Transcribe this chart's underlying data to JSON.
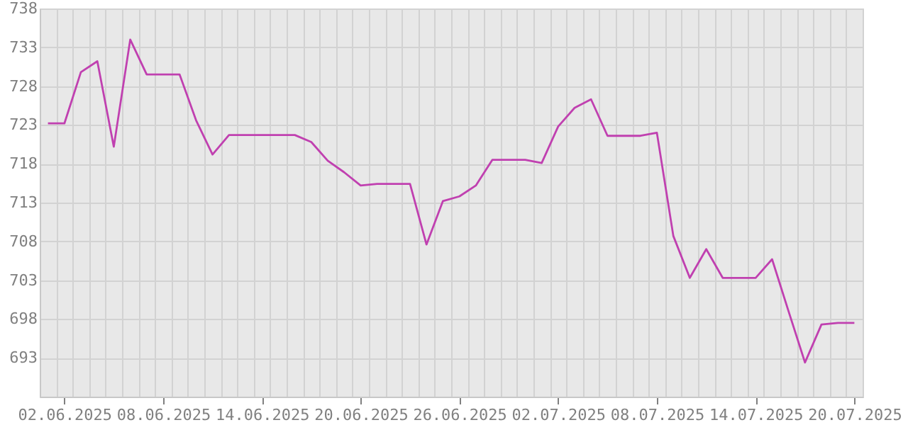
{
  "chart_data": {
    "type": "line",
    "x": [
      "2025-06-01",
      "2025-06-02",
      "2025-06-03",
      "2025-06-04",
      "2025-06-05",
      "2025-06-06",
      "2025-06-07",
      "2025-06-08",
      "2025-06-09",
      "2025-06-10",
      "2025-06-11",
      "2025-06-12",
      "2025-06-13",
      "2025-06-14",
      "2025-06-15",
      "2025-06-16",
      "2025-06-17",
      "2025-06-18",
      "2025-06-19",
      "2025-06-20",
      "2025-06-21",
      "2025-06-22",
      "2025-06-23",
      "2025-06-24",
      "2025-06-25",
      "2025-06-26",
      "2025-06-27",
      "2025-06-28",
      "2025-06-29",
      "2025-06-30",
      "2025-07-01",
      "2025-07-02",
      "2025-07-03",
      "2025-07-04",
      "2025-07-05",
      "2025-07-06",
      "2025-07-07",
      "2025-07-08",
      "2025-07-09",
      "2025-07-10",
      "2025-07-11",
      "2025-07-12",
      "2025-07-13",
      "2025-07-14",
      "2025-07-15",
      "2025-07-16",
      "2025-07-17",
      "2025-07-18",
      "2025-07-19",
      "2025-07-20"
    ],
    "series": [
      {
        "color": "#c040b0",
        "values": [
          723.2,
          723.2,
          729.8,
          731.2,
          720.2,
          734.0,
          729.5,
          729.5,
          729.5,
          723.6,
          719.2,
          721.7,
          721.7,
          721.7,
          721.7,
          721.7,
          720.8,
          718.4,
          716.9,
          715.2,
          715.4,
          715.4,
          715.4,
          707.6,
          713.2,
          713.8,
          715.2,
          718.5,
          718.5,
          718.5,
          718.1,
          722.8,
          725.2,
          726.3,
          721.6,
          721.6,
          721.6,
          722.0,
          708.7,
          703.3,
          707.0,
          703.3,
          703.3,
          703.3,
          705.7,
          699.0,
          692.4,
          697.3,
          697.5,
          697.5
        ]
      }
    ],
    "xlim": [
      "2025-05-31T12:00",
      "2025-07-20T12:00"
    ],
    "xticks": [
      {
        "value": "2025-06-01T12:00",
        "label": null
      },
      {
        "value": "2025-06-02",
        "label": "02.06.2025"
      },
      {
        "value": "2025-06-02T12:00",
        "label": null
      },
      {
        "value": "2025-06-03T12:00",
        "label": null
      },
      {
        "value": "2025-06-04T12:00",
        "label": null
      },
      {
        "value": "2025-06-05T12:00",
        "label": null
      },
      {
        "value": "2025-06-06T12:00",
        "label": null
      },
      {
        "value": "2025-06-07T12:00",
        "label": null
      },
      {
        "value": "2025-06-08",
        "label": "08.06.2025"
      },
      {
        "value": "2025-06-08T12:00",
        "label": null
      },
      {
        "value": "2025-06-09T12:00",
        "label": null
      },
      {
        "value": "2025-06-10T12:00",
        "label": null
      },
      {
        "value": "2025-06-11T12:00",
        "label": null
      },
      {
        "value": "2025-06-12T12:00",
        "label": null
      },
      {
        "value": "2025-06-13T12:00",
        "label": null
      },
      {
        "value": "2025-06-14",
        "label": "14.06.2025"
      },
      {
        "value": "2025-06-14T12:00",
        "label": null
      },
      {
        "value": "2025-06-15T12:00",
        "label": null
      },
      {
        "value": "2025-06-16T12:00",
        "label": null
      },
      {
        "value": "2025-06-17T12:00",
        "label": null
      },
      {
        "value": "2025-06-18T12:00",
        "label": null
      },
      {
        "value": "2025-06-19T12:00",
        "label": null
      },
      {
        "value": "2025-06-20",
        "label": "20.06.2025"
      },
      {
        "value": "2025-06-20T12:00",
        "label": null
      },
      {
        "value": "2025-06-21T12:00",
        "label": null
      },
      {
        "value": "2025-06-22T12:00",
        "label": null
      },
      {
        "value": "2025-06-23T12:00",
        "label": null
      },
      {
        "value": "2025-06-24T12:00",
        "label": null
      },
      {
        "value": "2025-06-25T12:00",
        "label": null
      },
      {
        "value": "2025-06-26",
        "label": "26.06.2025"
      },
      {
        "value": "2025-06-26T12:00",
        "label": null
      },
      {
        "value": "2025-06-27T12:00",
        "label": null
      },
      {
        "value": "2025-06-28T12:00",
        "label": null
      },
      {
        "value": "2025-06-29T12:00",
        "label": null
      },
      {
        "value": "2025-06-30T12:00",
        "label": null
      },
      {
        "value": "2025-07-01T12:00",
        "label": null
      },
      {
        "value": "2025-07-02",
        "label": "02.07.2025"
      },
      {
        "value": "2025-07-02T12:00",
        "label": null
      },
      {
        "value": "2025-07-03T12:00",
        "label": null
      },
      {
        "value": "2025-07-04T12:00",
        "label": null
      },
      {
        "value": "2025-07-05T12:00",
        "label": null
      },
      {
        "value": "2025-07-06T12:00",
        "label": null
      },
      {
        "value": "2025-07-07T12:00",
        "label": null
      },
      {
        "value": "2025-07-08",
        "label": "08.07.2025"
      },
      {
        "value": "2025-07-08T12:00",
        "label": null
      },
      {
        "value": "2025-07-09T12:00",
        "label": null
      },
      {
        "value": "2025-07-10T12:00",
        "label": null
      },
      {
        "value": "2025-07-11T12:00",
        "label": null
      },
      {
        "value": "2025-07-12T12:00",
        "label": null
      },
      {
        "value": "2025-07-13T12:00",
        "label": null
      },
      {
        "value": "2025-07-14",
        "label": "14.07.2025"
      },
      {
        "value": "2025-07-14T12:00",
        "label": null
      },
      {
        "value": "2025-07-15T12:00",
        "label": null
      },
      {
        "value": "2025-07-16T12:00",
        "label": null
      },
      {
        "value": "2025-07-17T12:00",
        "label": null
      },
      {
        "value": "2025-07-18T12:00",
        "label": null
      },
      {
        "value": "2025-07-19T12:00",
        "label": null
      },
      {
        "value": "2025-07-20",
        "label": "20.07.2025"
      }
    ],
    "ylim": [
      688,
      738
    ],
    "yticks": [
      693,
      698,
      703,
      708,
      713,
      718,
      723,
      728,
      733,
      738
    ],
    "grid": true
  }
}
